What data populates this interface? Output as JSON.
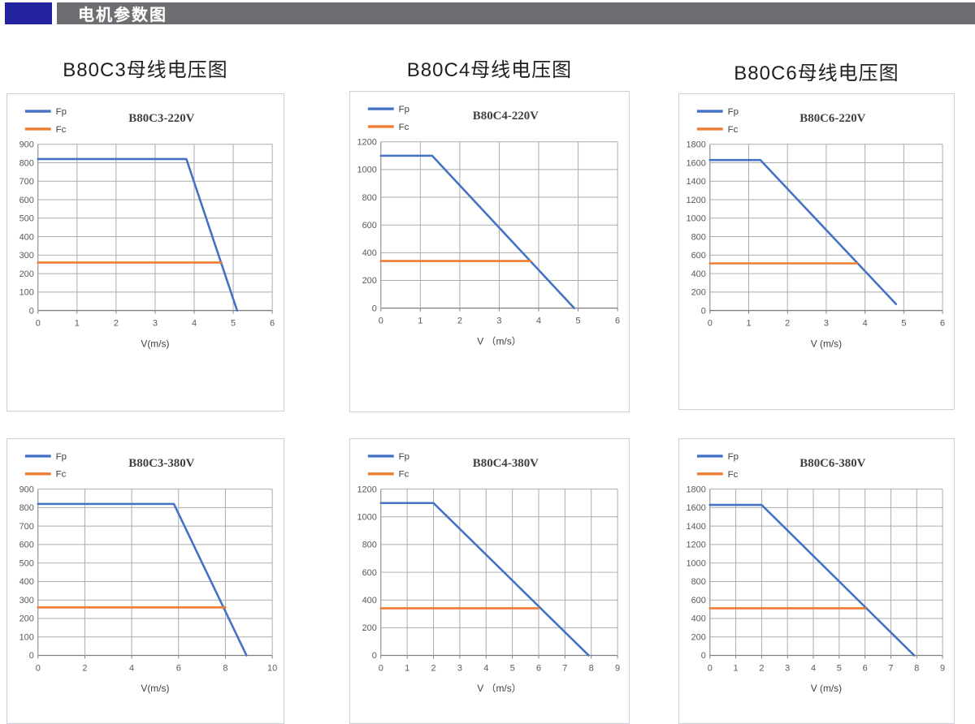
{
  "header": {
    "title": "电机参数图",
    "bar_color": "#6D6D72",
    "accent_color": "#2424A0"
  },
  "section_titles": [
    "B80C3母线电压图",
    "B80C4母线电压图",
    "B80C6母线电压图"
  ],
  "legend": {
    "fp_label": "Fp",
    "fc_label": "Fc"
  },
  "colors": {
    "fp": "#4472C4",
    "fc": "#ED7D31",
    "grid": "#ABABAB",
    "axis": "#7F7F7F",
    "axis_text": "#595959",
    "title_text": "#404040"
  },
  "chart_data": [
    {
      "type": "line",
      "title": "B80C3-220V",
      "xlabel": "V(m/s)",
      "xlim": [
        0,
        6
      ],
      "xstep": 1,
      "ylim": [
        0,
        900
      ],
      "ystep": 100,
      "grid": true,
      "legend_position": "top-left",
      "series": [
        {
          "name": "Fp",
          "color_key": "fp",
          "points": [
            [
              0,
              820
            ],
            [
              3.8,
              820
            ],
            [
              5.1,
              0
            ]
          ]
        },
        {
          "name": "Fc",
          "color_key": "fc",
          "points": [
            [
              0,
              260
            ],
            [
              4.7,
              260
            ]
          ]
        }
      ]
    },
    {
      "type": "line",
      "title": "B80C4-220V",
      "xlabel": "V （m/s）",
      "xlim": [
        0,
        6
      ],
      "xstep": 1,
      "ylim": [
        0,
        1200
      ],
      "ystep": 200,
      "grid": true,
      "legend_position": "top-left",
      "series": [
        {
          "name": "Fp",
          "color_key": "fp",
          "points": [
            [
              0,
              1100
            ],
            [
              1.3,
              1100
            ],
            [
              4.9,
              0
            ]
          ]
        },
        {
          "name": "Fc",
          "color_key": "fc",
          "points": [
            [
              0,
              340
            ],
            [
              3.8,
              340
            ]
          ]
        }
      ]
    },
    {
      "type": "line",
      "title": "B80C6-220V",
      "xlabel": "V (m/s)",
      "xlim": [
        0,
        6
      ],
      "xstep": 1,
      "ylim": [
        0,
        1800
      ],
      "ystep": 200,
      "grid": true,
      "legend_position": "top-left",
      "series": [
        {
          "name": "Fp",
          "color_key": "fp",
          "points": [
            [
              0,
              1630
            ],
            [
              1.3,
              1630
            ],
            [
              4.8,
              70
            ]
          ]
        },
        {
          "name": "Fc",
          "color_key": "fc",
          "points": [
            [
              0,
              510
            ],
            [
              3.8,
              510
            ]
          ]
        }
      ]
    },
    {
      "type": "line",
      "title": "B80C3-380V",
      "xlabel": "V(m/s)",
      "xlim": [
        0,
        10
      ],
      "xstep": 2,
      "ylim": [
        0,
        900
      ],
      "ystep": 100,
      "grid": true,
      "legend_position": "top-left",
      "series": [
        {
          "name": "Fp",
          "color_key": "fp",
          "points": [
            [
              0,
              820
            ],
            [
              5.8,
              820
            ],
            [
              8.9,
              0
            ]
          ]
        },
        {
          "name": "Fc",
          "color_key": "fc",
          "points": [
            [
              0,
              260
            ],
            [
              8,
              260
            ]
          ]
        }
      ]
    },
    {
      "type": "line",
      "title": "B80C4-380V",
      "xlabel": "V （m/s）",
      "xlim": [
        0,
        9
      ],
      "xstep": 1,
      "ylim": [
        0,
        1200
      ],
      "ystep": 200,
      "grid": true,
      "legend_position": "top-left",
      "series": [
        {
          "name": "Fp",
          "color_key": "fp",
          "points": [
            [
              0,
              1100
            ],
            [
              2,
              1100
            ],
            [
              7.9,
              0
            ]
          ]
        },
        {
          "name": "Fc",
          "color_key": "fc",
          "points": [
            [
              0,
              340
            ],
            [
              6,
              340
            ]
          ]
        }
      ]
    },
    {
      "type": "line",
      "title": "B80C6-380V",
      "xlabel": "V (m/s)",
      "xlim": [
        0,
        9
      ],
      "xstep": 1,
      "ylim": [
        0,
        1800
      ],
      "ystep": 200,
      "grid": true,
      "legend_position": "top-left",
      "series": [
        {
          "name": "Fp",
          "color_key": "fp",
          "points": [
            [
              0,
              1630
            ],
            [
              2,
              1630
            ],
            [
              7.9,
              0
            ]
          ]
        },
        {
          "name": "Fc",
          "color_key": "fc",
          "points": [
            [
              0,
              510
            ],
            [
              6,
              510
            ]
          ]
        }
      ]
    }
  ]
}
